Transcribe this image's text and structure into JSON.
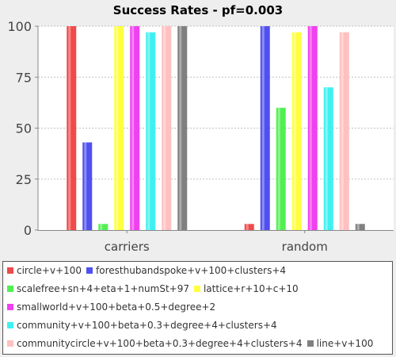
{
  "chart_data": {
    "type": "bar",
    "title": "Success Rates - pf=0.003",
    "xlabel": "",
    "ylabel": "",
    "ylim": [
      0,
      100
    ],
    "yticks": [
      0,
      25,
      50,
      75,
      100
    ],
    "grid": true,
    "legend_position": "bottom",
    "categories": [
      "carriers",
      "random"
    ],
    "series": [
      {
        "name": "circle+v+100",
        "color": "#f04a4a",
        "values": [
          100,
          3
        ]
      },
      {
        "name": "foresthubandspoke+v+100+clusters+4",
        "color": "#5050f0",
        "values": [
          43,
          100
        ]
      },
      {
        "name": "scalefree+sn+4+eta+1+numSt+97",
        "color": "#50f050",
        "values": [
          3,
          60
        ]
      },
      {
        "name": "lattice+r+10+c+10",
        "color": "#ffff40",
        "values": [
          100,
          97
        ]
      },
      {
        "name": "smallworld+v+100+beta+0.5+degree+2",
        "color": "#f040f0",
        "values": [
          100,
          100
        ]
      },
      {
        "name": "community+v+100+beta+0.3+degree+4+clusters+4",
        "color": "#40f0f0",
        "values": [
          97,
          70
        ]
      },
      {
        "name": "communitycircle+v+100+beta+0.3+degree+4+clusters+4",
        "color": "#ffc0c0",
        "values": [
          100,
          97
        ]
      },
      {
        "name": "line+v+100",
        "color": "#808080",
        "values": [
          100,
          3
        ]
      }
    ]
  }
}
